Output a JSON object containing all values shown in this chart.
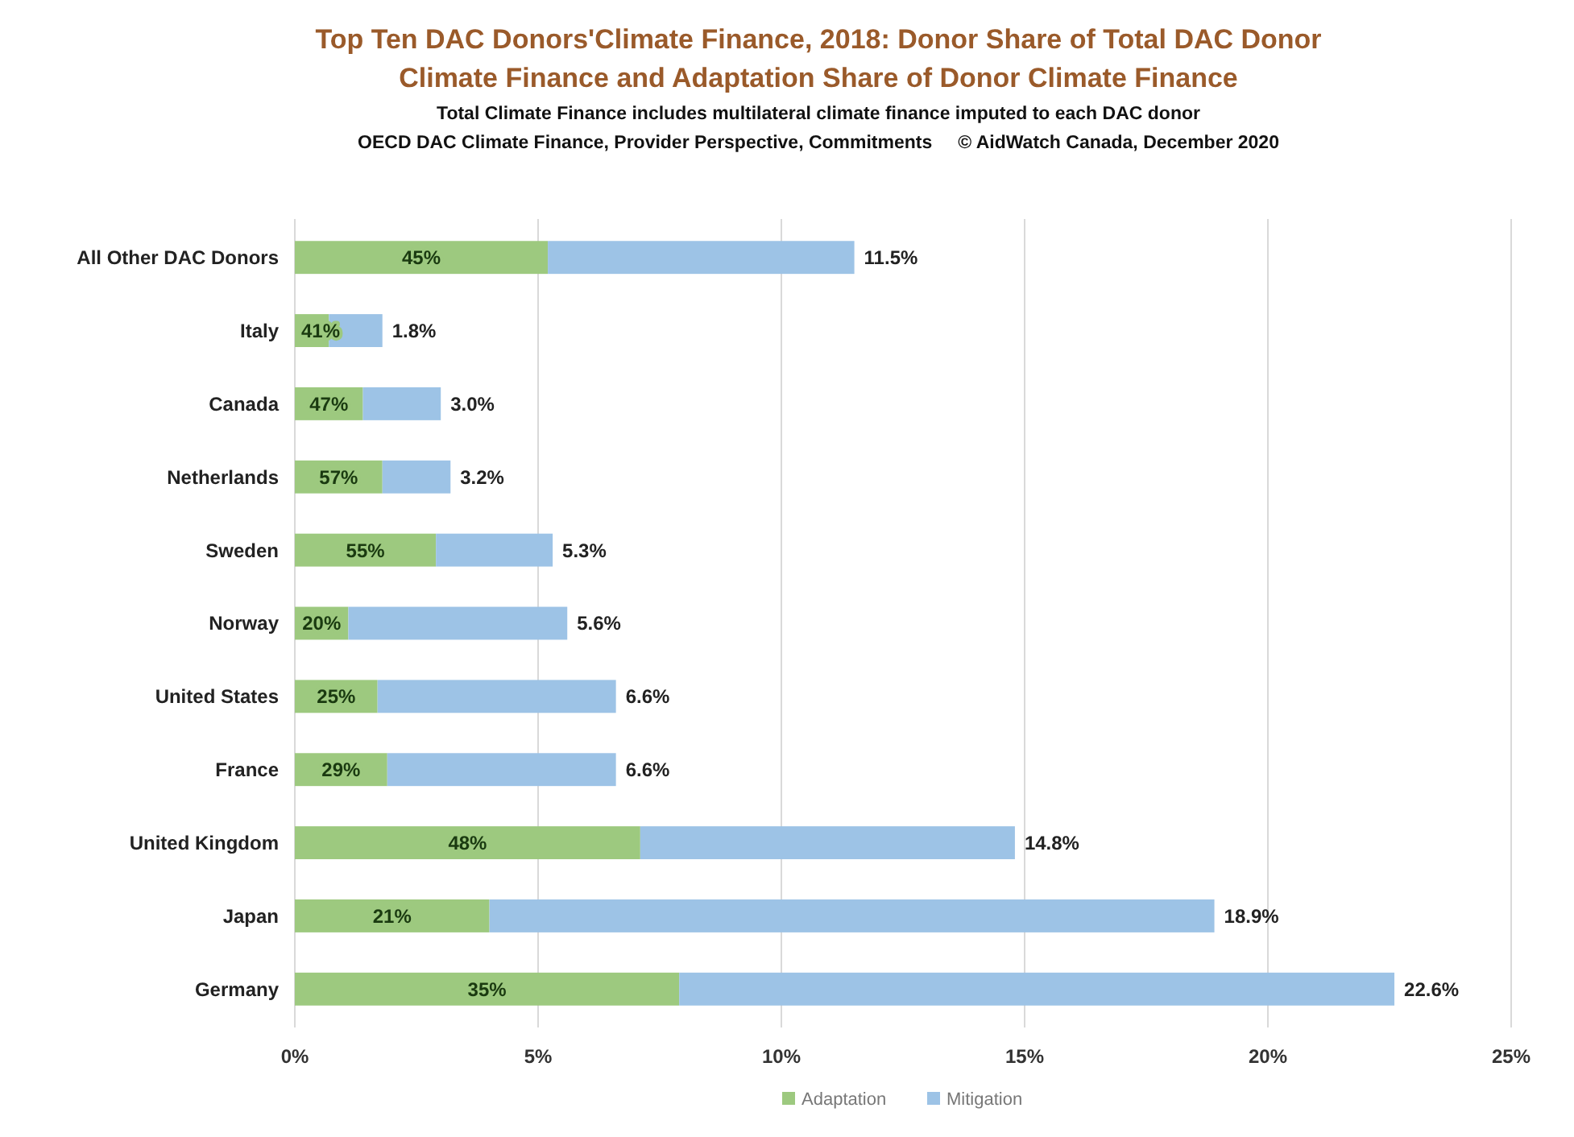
{
  "chart_data": {
    "type": "bar",
    "orientation": "horizontal",
    "stacked": true,
    "title": "Top Ten DAC Donors'Climate Finance, 2018: Donor Share of Total DAC Donor Climate Finance and Adaptation Share of Donor Climate Finance",
    "subtitle": "Total Climate Finance includes multilateral climate finance imputed to each DAC donor",
    "annotations": [
      "OECD DAC Climate Finance, Provider Perspective, Commitments     © AidWatch Canada, December 2020",
      "45%",
      "41%",
      "47%",
      "57%",
      "55%",
      "20%",
      "25%",
      "29%",
      "48%",
      "21%",
      "35%"
    ],
    "categories": [
      "All Other DAC Donors",
      "Italy",
      "Canada",
      "Netherlands",
      "Sweden",
      "Norway",
      "United States",
      "France",
      "United Kingdom",
      "Japan",
      "Germany"
    ],
    "series": [
      {
        "name": "Adaptation",
        "color": "#9dc97f",
        "values": [
          5.2,
          0.7,
          1.4,
          1.8,
          2.9,
          1.1,
          1.7,
          1.9,
          7.1,
          4.0,
          7.9
        ]
      },
      {
        "name": "Mitigation",
        "color": "#9dc3e6",
        "values": [
          6.3,
          1.1,
          1.6,
          1.4,
          2.4,
          4.5,
          4.9,
          4.7,
          7.7,
          14.9,
          14.7
        ]
      }
    ],
    "totals": [
      "11.5%",
      "1.8%",
      "3.0%",
      "3.2%",
      "5.3%",
      "5.6%",
      "6.6%",
      "6.6%",
      "14.8%",
      "18.9%",
      "22.6%"
    ],
    "xlim": [
      0,
      25
    ],
    "xticks": [
      {
        "value": 0,
        "label": "0%"
      },
      {
        "value": 5,
        "label": "5%"
      },
      {
        "value": 10,
        "label": "10%"
      },
      {
        "value": 15,
        "label": "15%"
      },
      {
        "value": 20,
        "label": "20%"
      },
      {
        "value": 25,
        "label": "25%"
      }
    ],
    "grid": "x",
    "legend": "bottom"
  }
}
